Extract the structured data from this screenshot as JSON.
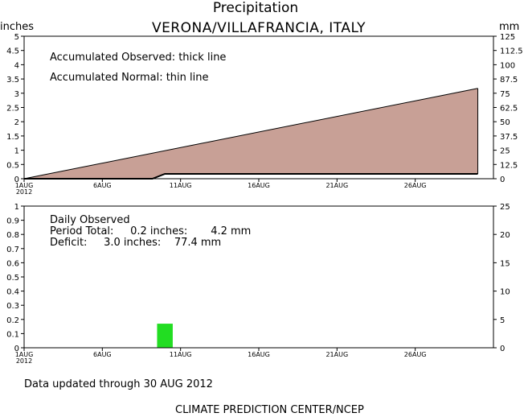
{
  "header": {
    "title": "Precipitation",
    "station": "VERONA/VILLAFRANCIA,  ITALY",
    "left_unit": "inches",
    "right_unit": "mm"
  },
  "footer": {
    "updated": "Data updated through 30 AUG 2012",
    "credit": "CLIMATE PREDICTION CENTER/NCEP"
  },
  "colors": {
    "normal_fill": "#c8a096",
    "daily_bar": "#22dd22",
    "axis": "#000000"
  },
  "chart_data": [
    {
      "type": "area",
      "name": "accumulated",
      "annotations": [
        "Accumulated Observed: thick line",
        "Accumulated Normal: thin line"
      ],
      "ylim": [
        0,
        5
      ],
      "yticks": [
        "0",
        "0.5",
        "1",
        "1.5",
        "2",
        "2.5",
        "3",
        "3.5",
        "4",
        "4.5",
        "5"
      ],
      "y2lim": [
        0,
        125
      ],
      "y2ticks": [
        "0",
        "12.5",
        "25",
        "37.5",
        "50",
        "62.5",
        "75",
        "87.5",
        "100",
        "112.5",
        "125"
      ],
      "xticks": [
        "1AUG",
        "6AUG",
        "11AUG",
        "16AUG",
        "21AUG",
        "26AUG"
      ],
      "xtick_year": "2012",
      "xlim": [
        1,
        31
      ],
      "series": [
        {
          "x": [
            1,
            30
          ],
          "values": [
            0,
            3.17
          ]
        },
        {
          "x": [
            1,
            9.2,
            10,
            30
          ],
          "values": [
            0,
            0,
            0.17,
            0.17
          ]
        }
      ]
    },
    {
      "type": "bar",
      "name": "daily",
      "annotations": [
        "Daily Observed",
        "Period Total:     0.2 inches:       4.2 mm",
        "Deficit:     3.0 inches:    77.4 mm"
      ],
      "ylim": [
        0,
        1
      ],
      "yticks": [
        "0",
        "0.1",
        "0.2",
        "0.3",
        "0.4",
        "0.5",
        "0.6",
        "0.7",
        "0.8",
        "0.9",
        "1"
      ],
      "y2lim": [
        0,
        25
      ],
      "y2ticks": [
        "0",
        "5",
        "10",
        "15",
        "20",
        "25"
      ],
      "xticks": [
        "1AUG",
        "6AUG",
        "11AUG",
        "16AUG",
        "21AUG",
        "26AUG"
      ],
      "xtick_year": "2012",
      "xlim": [
        1,
        31
      ],
      "bars": [
        {
          "x": 10,
          "value": 0.17
        }
      ]
    }
  ]
}
